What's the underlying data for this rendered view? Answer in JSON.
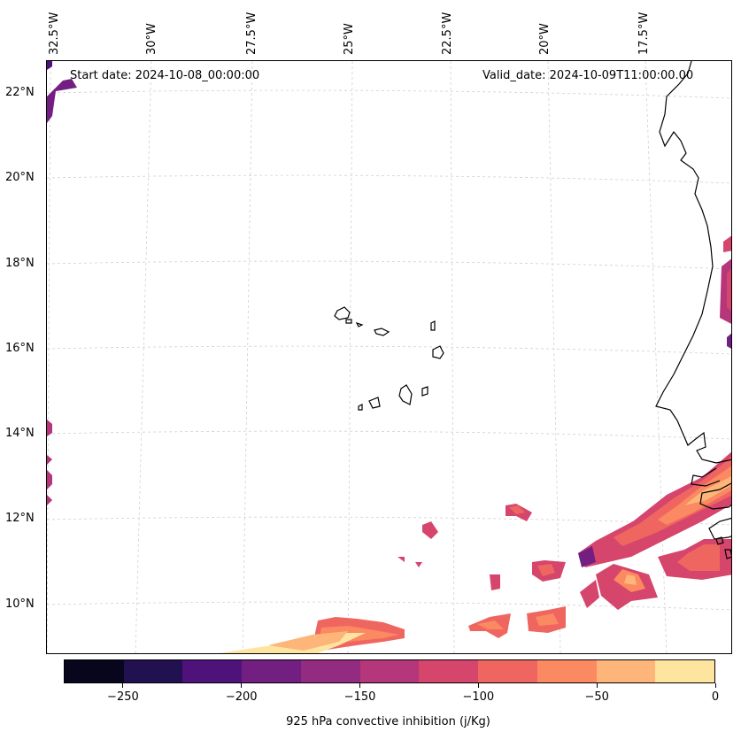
{
  "map": {
    "start_label": "Start date: 2024-10-08_00:00:00",
    "valid_label": "Valid_date: 2024-10-09T11:00:00.00",
    "lon_labels": [
      "32.5°W",
      "30°W",
      "27.5°W",
      "25°W",
      "22.5°W",
      "20°W",
      "17.5°W"
    ],
    "lat_labels": [
      "22°N",
      "20°N",
      "18°N",
      "16°N",
      "14°N",
      "12°N",
      "10°N"
    ],
    "variable": "925 hPa convective inhibition (j/Kg)"
  },
  "colorbar": {
    "label": "925 hPa convective inhibition (j/Kg)",
    "tick_labels": [
      "−250",
      "−200",
      "−150",
      "−100",
      "−50",
      "0"
    ],
    "range": [
      -275,
      0
    ],
    "level_colors": [
      "#07061c",
      "#221150",
      "#4f127b",
      "#721f81",
      "#932b80",
      "#b5367a",
      "#d6456c",
      "#ef6661",
      "#fb8961",
      "#fdb57a",
      "#fde5a0"
    ]
  },
  "colors": {
    "coast": "#000000",
    "grid": "#cccccc"
  }
}
